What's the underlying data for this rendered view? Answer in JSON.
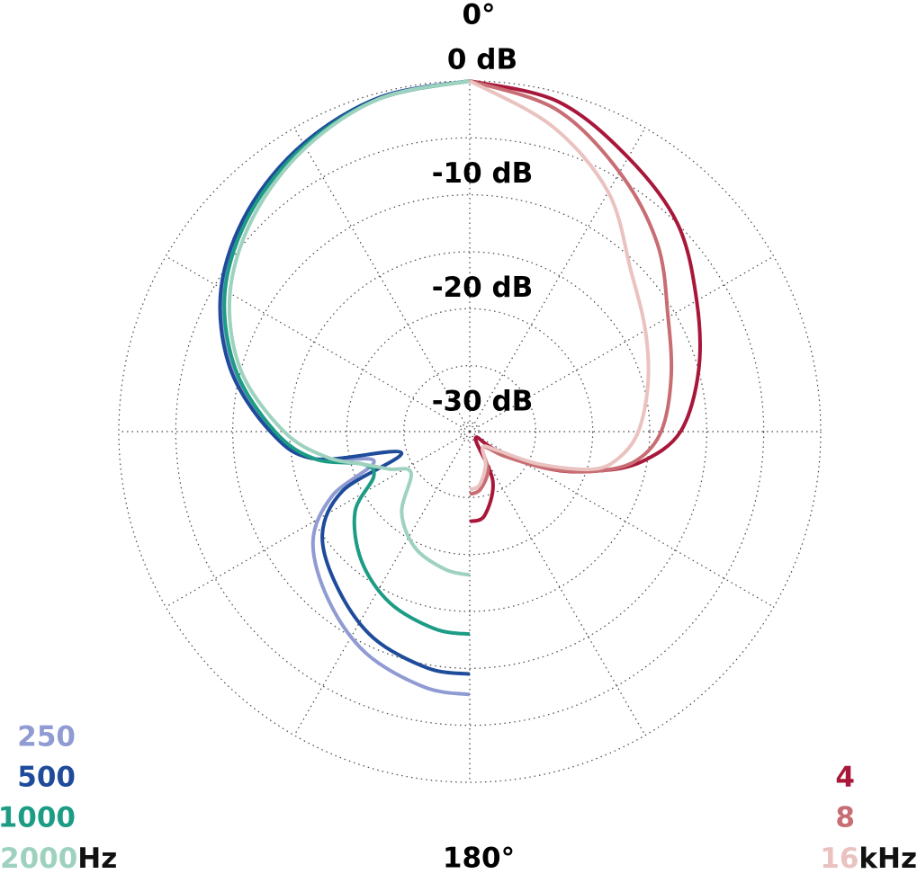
{
  "chart_data": {
    "type": "polar",
    "theta": [
      0,
      15,
      30,
      45,
      60,
      75,
      90,
      100,
      107,
      115,
      125,
      140,
      155,
      170,
      180
    ],
    "rlim": [
      -30,
      0
    ],
    "rticks": [
      {
        "value": 0,
        "label": "0 dB"
      },
      {
        "value": -5,
        "label": null
      },
      {
        "value": -10,
        "label": "-10 dB"
      },
      {
        "value": -15,
        "label": null
      },
      {
        "value": -20,
        "label": "-20 dB"
      },
      {
        "value": -25,
        "label": null
      },
      {
        "value": -30,
        "label": "-30 dB"
      }
    ],
    "thetaticks": [
      {
        "value": 0,
        "label": "0°"
      },
      {
        "value": 30,
        "label": null
      },
      {
        "value": 60,
        "label": null
      },
      {
        "value": 90,
        "label": null
      },
      {
        "value": 120,
        "label": null
      },
      {
        "value": 150,
        "label": null
      },
      {
        "value": 180,
        "label": "180°"
      },
      {
        "value": 210,
        "label": null
      },
      {
        "value": 240,
        "label": null
      },
      {
        "value": 270,
        "label": null
      },
      {
        "value": 300,
        "label": null
      },
      {
        "value": 330,
        "label": null
      }
    ],
    "grid": true,
    "groups": [
      {
        "unit": "Hz",
        "side": "left",
        "series": [
          {
            "name": "250",
            "color": "#8f9bd2",
            "values": [
              0,
              -0.4,
              -1.7,
              -3.4,
              -5.8,
              -9.2,
              -13.5,
              -17,
              -22,
              -17.5,
              -14,
              -11.5,
              -9.3,
              -8,
              -7.7
            ]
          },
          {
            "name": "500",
            "color": "#1f4b9b",
            "values": [
              0,
              -0.4,
              -1.6,
              -3.3,
              -5.6,
              -9,
              -13.3,
              -17,
              -24.5,
              -18.5,
              -15,
              -12.8,
              -10.8,
              -9.7,
              -9.5
            ]
          },
          {
            "name": "1000",
            "color": "#1d9c85",
            "values": [
              0,
              -0.5,
              -1.8,
              -3.6,
              -6,
              -9.5,
              -13.7,
              -17,
              -21,
              -21.5,
              -18.5,
              -16,
              -14.2,
              -13.2,
              -13
            ]
          },
          {
            "name": "2000",
            "color": "#9ed2bf",
            "values": [
              0,
              -0.5,
              -2,
              -4,
              -6.5,
              -10,
              -14.5,
              -18,
              -21,
              -23,
              -24.5,
              -21.5,
              -19.5,
              -18.5,
              -18.2
            ]
          }
        ]
      },
      {
        "unit": "kHz",
        "side": "right",
        "series": [
          {
            "name": "4",
            "color": "#a8173a",
            "values": [
              0,
              -0.8,
              -3,
              -5,
              -7.8,
              -10,
              -12.3,
              -15.5,
              -19,
              -23,
              -28,
              -30,
              -26,
              -23.3,
              -22.9
            ]
          },
          {
            "name": "8",
            "color": "#c86d73",
            "values": [
              0,
              -1.5,
              -4.5,
              -7.5,
              -10.7,
              -12.5,
              -14,
              -16,
              -19,
              -23,
              -27,
              -29,
              -27,
              -25.6,
              -25.3
            ]
          },
          {
            "name": "16",
            "color": "#eac2c0",
            "values": [
              0,
              -3,
              -6.5,
              -10.8,
              -13,
              -14.6,
              -16,
              -17.5,
              -19.5,
              -24,
              -28,
              -29,
              -27.5,
              -26,
              -25.7
            ]
          }
        ]
      }
    ]
  }
}
